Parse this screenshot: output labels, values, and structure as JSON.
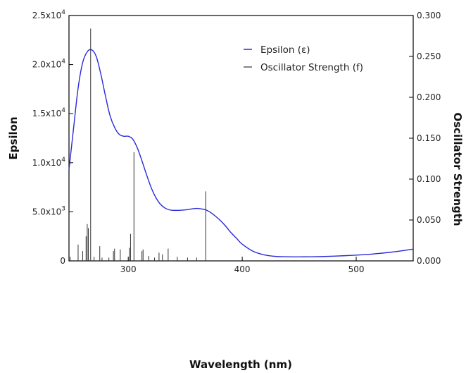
{
  "chart_data": {
    "type": "line",
    "xlabel": "Wavelength (nm)",
    "ylabel": "Epsilon",
    "y2label": "Oscillator Strength",
    "xlim": [
      248,
      550
    ],
    "ylim": [
      0,
      25000
    ],
    "y2lim": [
      0,
      0.3
    ],
    "x_ticks": [
      300,
      400,
      500
    ],
    "x_tick_labels": [
      "300",
      "400",
      "500"
    ],
    "y_ticks": [
      0,
      5000,
      10000,
      15000,
      20000,
      25000
    ],
    "y_tick_labels": [
      {
        "mantissa": "0",
        "exp": ""
      },
      {
        "mantissa": "5.0x10",
        "exp": "3"
      },
      {
        "mantissa": "1.0x10",
        "exp": "4"
      },
      {
        "mantissa": "1.5x10",
        "exp": "4"
      },
      {
        "mantissa": "2.0x10",
        "exp": "4"
      },
      {
        "mantissa": "2.5x10",
        "exp": "4"
      }
    ],
    "y2_ticks": [
      0,
      0.05,
      0.1,
      0.15,
      0.2,
      0.25,
      0.3
    ],
    "y2_tick_labels": [
      "0.000",
      "0.050",
      "0.100",
      "0.150",
      "0.200",
      "0.250",
      "0.300"
    ],
    "grid": false,
    "legend_position": "top-right",
    "series": [
      {
        "name": "Epsilon (ε)",
        "axis": "left",
        "style": "line",
        "color": "#2a2ad8",
        "x": [
          248,
          252,
          256,
          260,
          264,
          268,
          272,
          276,
          280,
          284,
          288,
          292,
          296,
          300,
          304,
          308,
          312,
          316,
          320,
          324,
          328,
          332,
          336,
          340,
          344,
          348,
          352,
          356,
          360,
          364,
          368,
          372,
          376,
          380,
          385,
          390,
          395,
          400,
          410,
          420,
          430,
          440,
          450,
          460,
          470,
          480,
          490,
          500,
          510,
          520,
          530,
          540,
          550
        ],
        "y": [
          9300,
          13500,
          17600,
          20200,
          21300,
          21500,
          20800,
          19000,
          16800,
          14800,
          13600,
          12900,
          12700,
          12700,
          12400,
          11500,
          10200,
          8800,
          7500,
          6500,
          5800,
          5400,
          5200,
          5150,
          5150,
          5180,
          5220,
          5300,
          5350,
          5300,
          5200,
          4950,
          4600,
          4200,
          3600,
          2900,
          2300,
          1700,
          950,
          600,
          450,
          420,
          410,
          420,
          440,
          480,
          530,
          590,
          660,
          760,
          880,
          1030,
          1200
        ]
      },
      {
        "name": "Oscillator Strength (f)",
        "axis": "right",
        "style": "stick",
        "color": "#333333",
        "x": [
          249,
          256,
          260,
          263,
          264,
          265,
          267,
          270,
          275,
          277,
          283,
          287,
          288,
          293,
          301,
          302,
          305,
          312,
          313,
          318,
          323,
          327,
          330,
          335,
          343,
          352,
          360,
          368
        ],
        "y": [
          0.005,
          0.02,
          0.012,
          0.03,
          0.045,
          0.04,
          0.284,
          0.005,
          0.018,
          0.004,
          0.004,
          0.012,
          0.015,
          0.014,
          0.016,
          0.033,
          0.133,
          0.012,
          0.014,
          0.006,
          0.004,
          0.01,
          0.008,
          0.015,
          0.005,
          0.004,
          0.004,
          0.085
        ]
      }
    ]
  }
}
